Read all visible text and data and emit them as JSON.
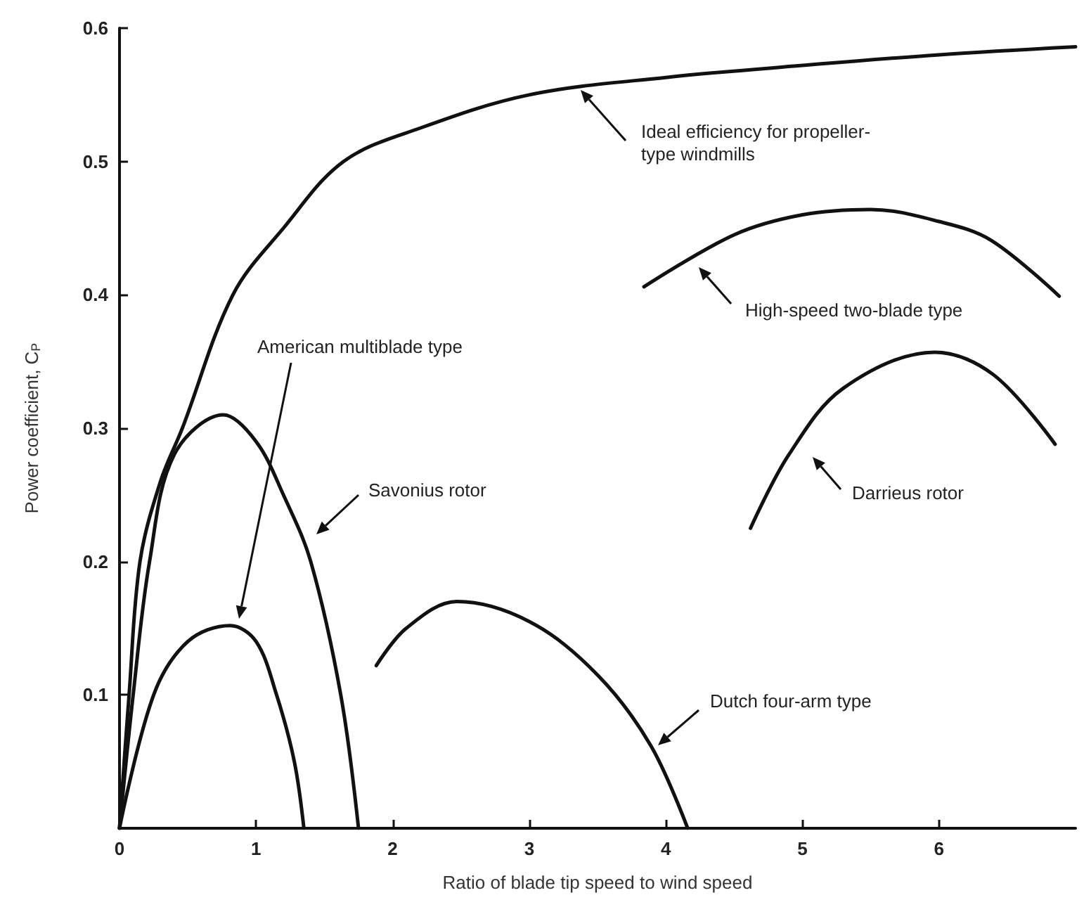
{
  "chart_data": {
    "type": "line",
    "xlabel": "Ratio of blade tip speed to wind speed",
    "ylabel": "Power coefficient, C$_{P}$",
    "xlim": [
      0,
      7
    ],
    "xticks": [
      0,
      1,
      2,
      3,
      4,
      5,
      6
    ],
    "ylim": [
      0,
      0.6
    ],
    "yticks": [
      0.1,
      0.2,
      0.3,
      0.4,
      0.5,
      0.6
    ],
    "grid": false,
    "marker": "none",
    "line_style": "solid",
    "series": [
      {
        "color": "#111111",
        "x": [
          0,
          0.07,
          0.15,
          0.3,
          0.46,
          0.83,
          1.2,
          1.64,
          2.2,
          3.0,
          4.0,
          5.0,
          6.0,
          7.0
        ],
        "values": [
          0,
          0.1,
          0.2,
          0.26,
          0.3,
          0.4,
          0.45,
          0.5,
          0.525,
          0.55,
          0.563,
          0.572,
          0.58,
          0.586
        ]
      },
      {
        "color": "#111111",
        "x": [
          3.84,
          4.5,
          5.0,
          5.5,
          6.0,
          6.38,
          6.88
        ],
        "values": [
          0.406,
          0.445,
          0.46,
          0.464,
          0.455,
          0.441,
          0.399
        ]
      },
      {
        "color": "#111111",
        "x": [
          0,
          0.1,
          0.22,
          0.4,
          0.76,
          1.0,
          1.2,
          1.4,
          1.62,
          1.75
        ],
        "values": [
          0,
          0.1,
          0.2,
          0.28,
          0.31,
          0.29,
          0.25,
          0.2,
          0.1,
          0
        ]
      },
      {
        "color": "#111111",
        "x": [
          0,
          0.25,
          0.5,
          0.81,
          1.0,
          1.15,
          1.28,
          1.35
        ],
        "values": [
          0,
          0.1,
          0.14,
          0.152,
          0.14,
          0.1,
          0.05,
          0
        ]
      },
      {
        "color": "#111111",
        "x": [
          4.62,
          4.9,
          5.3,
          5.97,
          6.4,
          6.85
        ],
        "values": [
          0.225,
          0.28,
          0.33,
          0.357,
          0.34,
          0.288
        ]
      },
      {
        "color": "#111111",
        "x": [
          1.88,
          2.1,
          2.47,
          3.0,
          3.5,
          3.89,
          4.16
        ],
        "values": [
          0.122,
          0.15,
          0.17,
          0.155,
          0.115,
          0.062,
          0
        ]
      }
    ],
    "annotations": [
      "Ideal efficiency for propeller-\ntype windmills",
      "High-speed two-blade type",
      "American multiblade type",
      "Savonius rotor",
      "Darrieus rotor",
      "Dutch four-arm type"
    ]
  }
}
